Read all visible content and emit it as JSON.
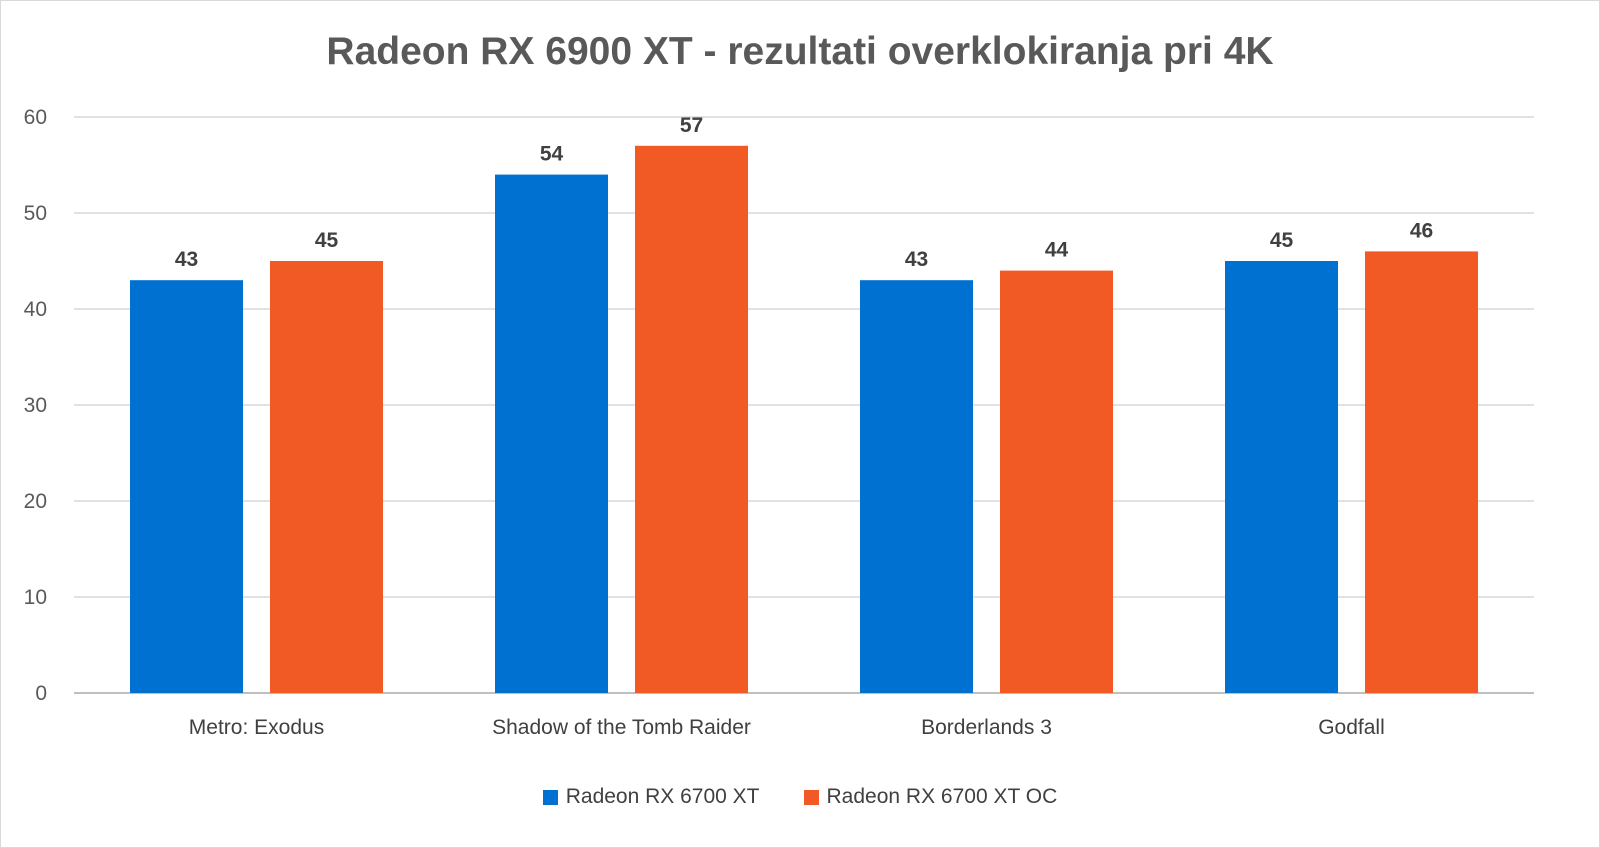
{
  "chart_data": {
    "type": "bar",
    "title": "Radeon RX 6900 XT - rezultati overklokiranja pri 4K",
    "xlabel": "",
    "ylabel": "",
    "categories": [
      "Metro: Exodus",
      "Shadow of the Tomb Raider",
      "Borderlands 3",
      "Godfall"
    ],
    "series": [
      {
        "name": "Radeon RX 6700 XT",
        "values": [
          43,
          54,
          43,
          45
        ],
        "color": "#0070d1"
      },
      {
        "name": "Radeon RX 6700 XT OC",
        "values": [
          45,
          57,
          44,
          46
        ],
        "color": "#f15a24"
      }
    ],
    "ylim": [
      0,
      60
    ],
    "yticks": [
      0,
      10,
      20,
      30,
      40,
      50,
      60
    ],
    "grid": true,
    "legend_position": "bottom",
    "data_labels": true
  }
}
